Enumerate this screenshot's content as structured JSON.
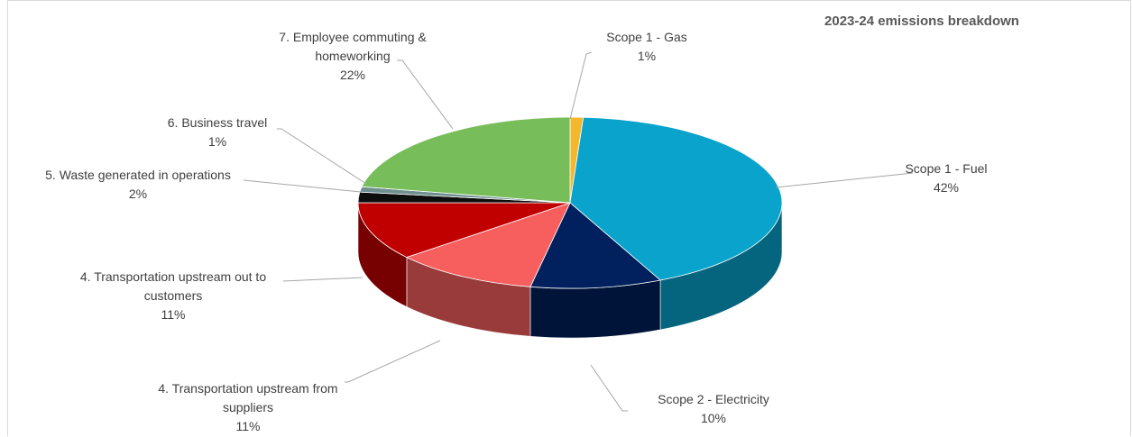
{
  "chart_data": {
    "type": "pie",
    "title": "2023-24 emissions breakdown",
    "slices": [
      {
        "name": "Scope 1 - Gas",
        "value": 1,
        "label": "1%",
        "color": "#f3b82b"
      },
      {
        "name": "Scope 1 - Fuel",
        "value": 42,
        "label": "42%",
        "color": "#0aa3cc"
      },
      {
        "name": "Scope 2 -  Electricity",
        "value": 10,
        "label": "10%",
        "color": "#00205e"
      },
      {
        "name": "4.  Transportation upstream from suppliers",
        "value": 11,
        "label": "11%",
        "color": "#f75f5f"
      },
      {
        "name": "4.  Transportation upstream out to customers",
        "value": 11,
        "label": "11%",
        "color": "#c00000"
      },
      {
        "name": "5. Waste generated in operations",
        "value": 2,
        "label": "2%",
        "color": "#0d0d0d"
      },
      {
        "name": "6. Business travel",
        "value": 1,
        "label": "1%",
        "color": "#6f8f8f"
      },
      {
        "name": "7. Employee commuting & homeworking",
        "value": 22,
        "label": "22%",
        "color": "#77bd5a"
      }
    ],
    "label_lines": [
      [
        "Scope 1 - Gas",
        "1%"
      ],
      [
        "Scope 1 - Fuel",
        "42%"
      ],
      [
        "Scope 2 -  Electricity",
        "10%"
      ],
      [
        "4.  Transportation upstream from",
        "suppliers",
        "11%"
      ],
      [
        "4.  Transportation upstream out to",
        "customers",
        "11%"
      ],
      [
        "5. Waste generated in operations",
        "2%"
      ],
      [
        "6. Business travel",
        "1%"
      ],
      [
        "7. Employee commuting &",
        "homeworking",
        "22%"
      ]
    ],
    "legend": "none",
    "style": "3d-pie"
  }
}
